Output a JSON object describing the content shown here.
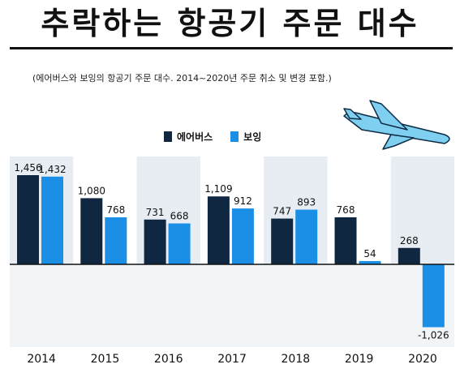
{
  "header": {
    "title": "추락하는 항공기 주문 대수",
    "subtitle": "(에어버스와 보잉의 항공기 주문 대수.  2014~2020년 주문 취소 및 변경 포함.)"
  },
  "colors": {
    "airbus": "#0f2741",
    "boeing": "#1b8fe6",
    "band": "#e7edf3",
    "background": "#ffffff",
    "airplane": "#7fd0f0"
  },
  "icons": {
    "airplane": "airplane-icon"
  },
  "chart_data": {
    "type": "bar",
    "categories": [
      "2014",
      "2015",
      "2016",
      "2017",
      "2018",
      "2019",
      "2020"
    ],
    "series": [
      {
        "name": "에어버스",
        "values": [
          1456,
          1080,
          731,
          1109,
          747,
          768,
          268
        ]
      },
      {
        "name": "보잉",
        "values": [
          1432,
          768,
          668,
          912,
          893,
          54,
          -1026
        ]
      }
    ],
    "data_labels": {
      "에어버스": [
        "1,456",
        "1,080",
        "731",
        "1,109",
        "747",
        "768",
        "268"
      ],
      "보잉": [
        "1,432",
        "768",
        "668",
        "912",
        "893",
        "54",
        "-1,026"
      ]
    },
    "title": "추락하는 항공기 주문 대수",
    "xlabel": "",
    "ylabel": "",
    "legend_position": "top-center",
    "grid": false
  }
}
